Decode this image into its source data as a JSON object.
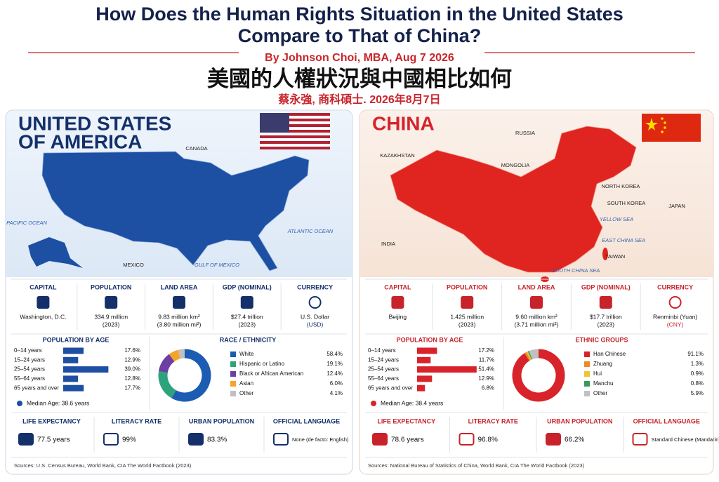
{
  "header": {
    "title": [
      "How Does the Human Rights Situation in the United States",
      "Compare to That of China?"
    ],
    "byline": "By Johnson Choi, MBA, Aug 7 2026",
    "title_zh": "美國的人權狀況與中國相比如何",
    "byline_zh": "蔡永強, 商科碩士. 2026年8月7日"
  },
  "panels": [
    {
      "name": [
        "UNITED STATES",
        "OF AMERICA"
      ],
      "color": "#1d4fa3",
      "map_labels": [
        "CANADA",
        "PACIFIC OCEAN",
        "ATLANTIC OCEAN",
        "MEXICO",
        "GULF OF MEXICO"
      ],
      "facts": [
        {
          "label": "CAPITAL",
          "value": "Washington, D.C.",
          "sub": ""
        },
        {
          "label": "POPULATION",
          "value": "334.9 million",
          "sub": "(2023)"
        },
        {
          "label": "LAND AREA",
          "value": "9.83 million km²",
          "sub": "(3.80 million mi²)"
        },
        {
          "label": "GDP (NOMINAL)",
          "value": "$27.4 trillion",
          "sub": "(2023)"
        },
        {
          "label": "CURRENCY",
          "value": "U.S. Dollar",
          "sub": "(USD)"
        }
      ],
      "age": {
        "title": "POPULATION BY AGE",
        "categories": [
          "0–14 years",
          "15–24 years",
          "25–54 years",
          "55–64 years",
          "65 years and over"
        ],
        "values": [
          17.6,
          12.9,
          39.0,
          12.8,
          17.7
        ],
        "value_labels": [
          "17.6%",
          "12.9%",
          "39.0%",
          "12.8%",
          "17.7%"
        ],
        "median": "Median Age: 38.6 years"
      },
      "groups": {
        "title": "RACE / ETHNICITY",
        "categories": [
          "White",
          "Hispanic or Latino",
          "Black or African American",
          "Asian",
          "Other"
        ],
        "values": [
          58.4,
          19.1,
          12.4,
          6.0,
          4.1
        ],
        "value_labels": [
          "58.4%",
          "19.1%",
          "12.4%",
          "6.0%",
          "4.1%"
        ],
        "colors": [
          "#1d5cb3",
          "#2da37c",
          "#6b3fa3",
          "#f5a42a",
          "#c0c0c0"
        ]
      },
      "stats": [
        {
          "label": "LIFE EXPECTANCY",
          "value": "77.5 years"
        },
        {
          "label": "LITERACY RATE",
          "value": "99%"
        },
        {
          "label": "URBAN POPULATION",
          "value": "83.3%"
        },
        {
          "label": "OFFICIAL LANGUAGE",
          "value": "None (de facto: English)"
        }
      ],
      "sources": "Sources: U.S. Census Bureau, World Bank, CIA The World Factbook (2023)"
    },
    {
      "name": [
        "CHINA"
      ],
      "color": "#d8232a",
      "map_labels": [
        "RUSSIA",
        "KAZAKHSTAN",
        "MONGOLIA",
        "NORTH KOREA",
        "SOUTH KOREA",
        "JAPAN",
        "YELLOW SEA",
        "EAST CHINA SEA",
        "TAIWAN",
        "INDIA",
        "SOUTH CHINA SEA"
      ],
      "facts": [
        {
          "label": "CAPITAL",
          "value": "Beijing",
          "sub": ""
        },
        {
          "label": "POPULATION",
          "value": "1.425 million",
          "sub": "(2023)"
        },
        {
          "label": "LAND AREA",
          "value": "9.60 million km²",
          "sub": "(3.71 million mi²)"
        },
        {
          "label": "GDP (NOMINAL)",
          "value": "$17.7 trillion",
          "sub": "(2023)"
        },
        {
          "label": "CURRENCY",
          "value": "Renminbi (Yuan)",
          "sub": "(CNY)"
        }
      ],
      "age": {
        "title": "POPULATION BY AGE",
        "categories": [
          "0–14 years",
          "15–24 years",
          "25–54 years",
          "55–64 years",
          "65 years and over"
        ],
        "values": [
          17.2,
          11.7,
          51.4,
          12.9,
          6.8
        ],
        "value_labels": [
          "17.2%",
          "11.7%",
          "51.4%",
          "12.9%",
          "6.8%"
        ],
        "median": "Median Age: 38.4 years"
      },
      "groups": {
        "title": "ETHNIC GROUPS",
        "categories": [
          "Han Chinese",
          "Zhuang",
          "Hui",
          "Manchu",
          "Other"
        ],
        "values": [
          91.1,
          1.3,
          0.9,
          0.8,
          5.9
        ],
        "value_labels": [
          "91.1%",
          "1.3%",
          "0.9%",
          "0.8%",
          "5.9%"
        ],
        "colors": [
          "#d8232a",
          "#f08a24",
          "#f2c230",
          "#3a9a5a",
          "#c0c0c0"
        ]
      },
      "stats": [
        {
          "label": "LIFE EXPECTANCY",
          "value": "78.6 years"
        },
        {
          "label": "LITERACY RATE",
          "value": "96.8%"
        },
        {
          "label": "URBAN POPULATION",
          "value": "66.2%"
        },
        {
          "label": "OFFICIAL LANGUAGE",
          "value": "Standard Chinese (Mandarin)"
        }
      ],
      "sources": "Sources: National Bureau of Statistics of China, World Bank, CIA The World Factbook (2023)"
    }
  ]
}
